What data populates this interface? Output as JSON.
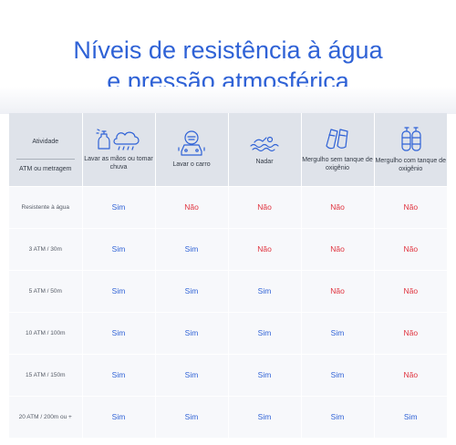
{
  "title": {
    "line1": "Níveis de resistência à água",
    "line2": "e pressão atmosférica"
  },
  "table": {
    "header": {
      "activity_label": "Atividade",
      "depth_label": "ATM ou metragem"
    },
    "columns": [
      {
        "label": "Lavar as mãos ou tomar chuva",
        "icon": "hand-wash-rain-icon"
      },
      {
        "label": "Lavar o carro",
        "icon": "car-wash-icon"
      },
      {
        "label": "Nadar",
        "icon": "swim-icon"
      },
      {
        "label": "Mergulho sem tanque de oxigênio",
        "icon": "flippers-icon"
      },
      {
        "label": "Mergulho com tanque de oxigênio",
        "icon": "oxygen-tank-icon"
      }
    ],
    "rows": [
      {
        "label": "Resistente à água",
        "cells": [
          "Sim",
          "Não",
          "Não",
          "Não",
          "Não"
        ]
      },
      {
        "label": "3 ATM / 30m",
        "cells": [
          "Sim",
          "Sim",
          "Não",
          "Não",
          "Não"
        ]
      },
      {
        "label": "5 ATM / 50m",
        "cells": [
          "Sim",
          "Sim",
          "Sim",
          "Não",
          "Não"
        ]
      },
      {
        "label": "10 ATM / 100m",
        "cells": [
          "Sim",
          "Sim",
          "Sim",
          "Sim",
          "Não"
        ]
      },
      {
        "label": "15 ATM / 150m",
        "cells": [
          "Sim",
          "Sim",
          "Sim",
          "Sim",
          "Não"
        ]
      },
      {
        "label": "20 ATM / 200m ou +",
        "cells": [
          "Sim",
          "Sim",
          "Sim",
          "Sim",
          "Sim"
        ]
      }
    ]
  },
  "colors": {
    "title": "#2f62d6",
    "yes": "#2f62d6",
    "no": "#e0323d",
    "header_bg": "#dfe3ea",
    "body_bg": "#f7f8fb"
  }
}
